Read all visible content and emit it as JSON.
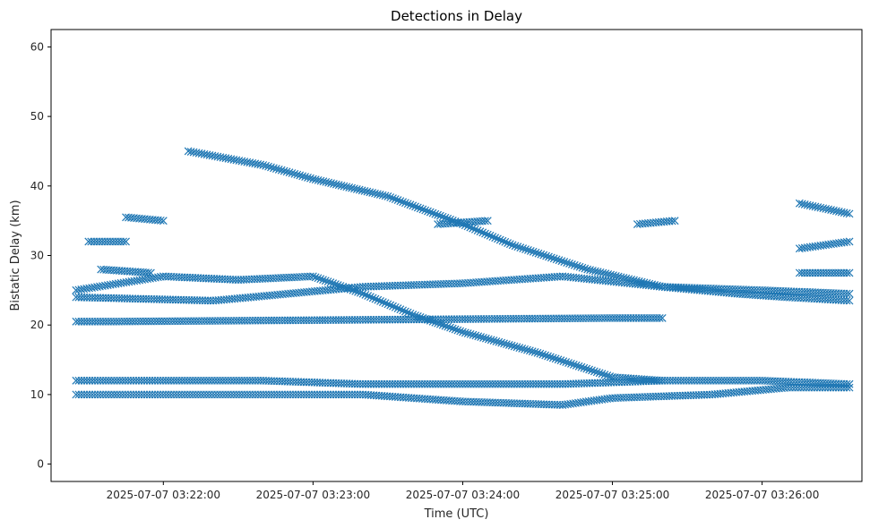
{
  "chart_data": {
    "type": "scatter",
    "title": "Detections in Delay",
    "xlabel": "Time (UTC)",
    "ylabel": "Bistatic Delay (km)",
    "x_unit": "time",
    "xlim": [
      "2025-07-07 03:21:15",
      "2025-07-07 03:26:40"
    ],
    "ylim": [
      -2.5,
      62.5
    ],
    "x_ticks": [
      "2025-07-07 03:22:00",
      "2025-07-07 03:23:00",
      "2025-07-07 03:24:00",
      "2025-07-07 03:25:00",
      "2025-07-07 03:26:00"
    ],
    "y_ticks": [
      0,
      10,
      20,
      30,
      40,
      50,
      60
    ],
    "marker": "x",
    "color": "#1f77b4",
    "grid": false,
    "legend": "none",
    "tracks": [
      {
        "points": [
          [
            "2025-07-07 03:22:10",
            45.0
          ],
          [
            "2025-07-07 03:22:40",
            43.0
          ],
          [
            "2025-07-07 03:23:00",
            41.0
          ],
          [
            "2025-07-07 03:23:30",
            38.5
          ],
          [
            "2025-07-07 03:24:00",
            34.5
          ],
          [
            "2025-07-07 03:24:20",
            31.5
          ],
          [
            "2025-07-07 03:24:50",
            28.0
          ],
          [
            "2025-07-07 03:25:20",
            25.5
          ],
          [
            "2025-07-07 03:25:50",
            24.5
          ],
          [
            "2025-07-07 03:26:10",
            24.0
          ],
          [
            "2025-07-07 03:26:35",
            23.5
          ]
        ]
      },
      {
        "points": [
          [
            "2025-07-07 03:21:25",
            25.0
          ],
          [
            "2025-07-07 03:22:00",
            27.0
          ],
          [
            "2025-07-07 03:22:30",
            26.5
          ],
          [
            "2025-07-07 03:23:00",
            27.0
          ],
          [
            "2025-07-07 03:23:20",
            24.5
          ],
          [
            "2025-07-07 03:23:40",
            21.5
          ],
          [
            "2025-07-07 03:24:00",
            19.0
          ],
          [
            "2025-07-07 03:24:30",
            16.0
          ],
          [
            "2025-07-07 03:25:00",
            12.5
          ],
          [
            "2025-07-07 03:25:20",
            12.0
          ]
        ]
      },
      {
        "points": [
          [
            "2025-07-07 03:21:25",
            24.0
          ],
          [
            "2025-07-07 03:22:20",
            23.5
          ],
          [
            "2025-07-07 03:23:20",
            25.5
          ],
          [
            "2025-07-07 03:24:00",
            26.0
          ],
          [
            "2025-07-07 03:24:40",
            27.0
          ],
          [
            "2025-07-07 03:25:20",
            25.5
          ],
          [
            "2025-07-07 03:26:00",
            25.0
          ],
          [
            "2025-07-07 03:26:35",
            24.5
          ]
        ]
      },
      {
        "points": [
          [
            "2025-07-07 03:21:25",
            12.0
          ],
          [
            "2025-07-07 03:22:00",
            12.0
          ],
          [
            "2025-07-07 03:22:40",
            12.0
          ],
          [
            "2025-07-07 03:23:20",
            11.5
          ],
          [
            "2025-07-07 03:24:00",
            11.5
          ],
          [
            "2025-07-07 03:24:40",
            11.5
          ],
          [
            "2025-07-07 03:25:20",
            12.0
          ],
          [
            "2025-07-07 03:26:00",
            12.0
          ],
          [
            "2025-07-07 03:26:35",
            11.5
          ]
        ]
      },
      {
        "points": [
          [
            "2025-07-07 03:21:25",
            10.0
          ],
          [
            "2025-07-07 03:22:00",
            10.0
          ],
          [
            "2025-07-07 03:22:40",
            10.0
          ],
          [
            "2025-07-07 03:23:20",
            10.0
          ],
          [
            "2025-07-07 03:24:00",
            9.0
          ],
          [
            "2025-07-07 03:24:40",
            8.5
          ],
          [
            "2025-07-07 03:25:00",
            9.5
          ],
          [
            "2025-07-07 03:25:40",
            10.0
          ],
          [
            "2025-07-07 03:26:10",
            11.0
          ],
          [
            "2025-07-07 03:26:35",
            11.0
          ]
        ]
      },
      {
        "points": [
          [
            "2025-07-07 03:21:25",
            20.5
          ],
          [
            "2025-07-07 03:21:40",
            20.5
          ],
          [
            "2025-07-07 03:25:00",
            21.0
          ],
          [
            "2025-07-07 03:25:20",
            21.0
          ]
        ]
      },
      {
        "points": [
          [
            "2025-07-07 03:21:30",
            32.0
          ],
          [
            "2025-07-07 03:21:45",
            32.0
          ]
        ]
      },
      {
        "points": [
          [
            "2025-07-07 03:21:35",
            28.0
          ],
          [
            "2025-07-07 03:21:55",
            27.5
          ]
        ]
      },
      {
        "points": [
          [
            "2025-07-07 03:21:45",
            35.5
          ],
          [
            "2025-07-07 03:22:00",
            35.0
          ]
        ]
      },
      {
        "points": [
          [
            "2025-07-07 03:23:50",
            34.5
          ],
          [
            "2025-07-07 03:24:10",
            35.0
          ]
        ]
      },
      {
        "points": [
          [
            "2025-07-07 03:26:15",
            37.5
          ],
          [
            "2025-07-07 03:26:35",
            36.0
          ]
        ]
      },
      {
        "points": [
          [
            "2025-07-07 03:26:15",
            31.0
          ],
          [
            "2025-07-07 03:26:35",
            32.0
          ]
        ]
      },
      {
        "points": [
          [
            "2025-07-07 03:26:15",
            27.5
          ],
          [
            "2025-07-07 03:26:35",
            27.5
          ]
        ]
      },
      {
        "points": [
          [
            "2025-07-07 03:25:10",
            34.5
          ],
          [
            "2025-07-07 03:25:25",
            35.0
          ]
        ]
      }
    ]
  }
}
